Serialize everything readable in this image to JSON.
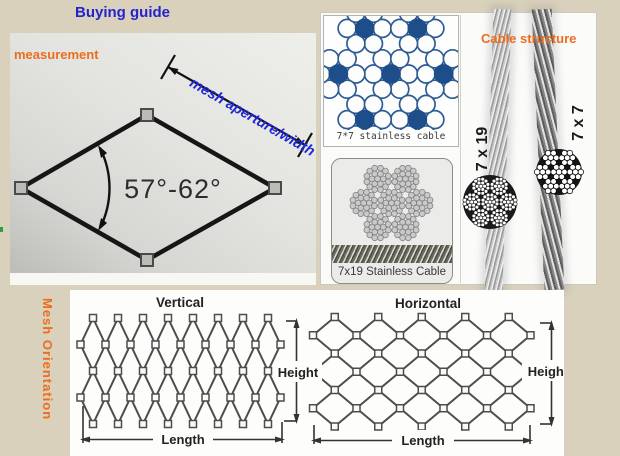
{
  "header": {
    "title": "Buying guide"
  },
  "measurement": {
    "panel_label": "measurement",
    "aperture_label": "mesh aperture/width",
    "angle_range": "57°-62°"
  },
  "cable_structure": {
    "panel_label": "Cable structure",
    "diagram_7x7_caption": "7*7 stainless cable",
    "diagram_7x19_caption": "7x19 Stainless Cable",
    "cable_left_label": "7 x 19",
    "cable_right_label": "7 x 7"
  },
  "mesh_orientation": {
    "panel_label": "Mesh Orientation",
    "vertical": {
      "title": "Vertical",
      "height_label": "Height",
      "length_label": "Length"
    },
    "horizontal": {
      "title": "Horizontal",
      "height_label": "Height",
      "length_label": "Length"
    }
  },
  "colors": {
    "background_beige": "#d9d1bb",
    "accent_blue": "#2424cf",
    "accent_orange": "#ed6d1d",
    "wire_core_navy": "#1d4e8a"
  }
}
